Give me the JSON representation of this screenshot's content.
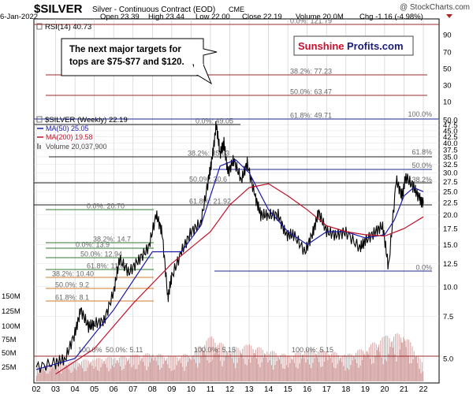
{
  "header": {
    "symbol": "$SILVER",
    "description": "Silver - Continuous Contract (EOD)",
    "exchange": "CME",
    "watermark": "@ StockCharts.com",
    "date": "6-Jan-2022",
    "open": "Open 23.39",
    "high": "High 23.44",
    "low": "Low 22.00",
    "close": "Close 22.19",
    "volume": "Volume 20.0M",
    "chg": "Chg -1.16 (-4.98%)"
  },
  "rsi": {
    "label": "RSI(14) 40.73",
    "ticks": [
      "90",
      "70",
      "50",
      "30",
      "10"
    ]
  },
  "annotation": {
    "line1": "The next major targets for",
    "line2": "tops are $75-$77 and $120."
  },
  "logo": {
    "part1": "Sunshine",
    "part2": "Profits.com"
  },
  "legend": {
    "price": "$SILVER (Weekly) 22.19",
    "ma50": "MA(50) 25.05",
    "ma200": "MA(200) 19.58",
    "volume": "Volume 20,037,900"
  },
  "colors": {
    "price": "#000000",
    "ma50": "#1a1aa8",
    "ma200": "#c0142a",
    "volume": "#d4a4a4",
    "fib_upper": "#9a2b2b",
    "fib_blue": "#1f2a9a",
    "fib_green": "#2f7a2f",
    "fib_orange": "#d07a2a",
    "grid": "#c8c8c8"
  },
  "chart_data": {
    "type": "line",
    "title": "$SILVER Silver - Continuous Contract (EOD)",
    "x_ticks": [
      "02",
      "03",
      "04",
      "05",
      "06",
      "07",
      "08",
      "09",
      "10",
      "11",
      "12",
      "13",
      "14",
      "15",
      "16",
      "17",
      "18",
      "19",
      "20",
      "21",
      "22"
    ],
    "y_ticks": [
      "50.0",
      "47.5",
      "45.0",
      "42.5",
      "40.0",
      "37.5",
      "35.0",
      "32.5",
      "30.0",
      "27.5",
      "25.0",
      "22.5",
      "20.0",
      "17.5",
      "15.0",
      "12.5",
      "10.0",
      "7.5",
      "5.0"
    ],
    "volume_ticks": [
      "150M",
      "125M",
      "100M",
      "75M",
      "50M",
      "25M"
    ],
    "ylim": [
      4.0,
      50.0
    ],
    "log_scale": true,
    "series": [
      {
        "name": "$SILVER (Weekly)",
        "x": [
          2002.0,
          2003.0,
          2003.5,
          2004.0,
          2004.3,
          2004.7,
          2005.0,
          2005.5,
          2006.0,
          2006.3,
          2006.8,
          2007.3,
          2007.8,
          2008.2,
          2008.5,
          2008.8,
          2009.0,
          2009.5,
          2010.0,
          2010.5,
          2010.9,
          2011.1,
          2011.3,
          2011.5,
          2011.7,
          2011.9,
          2012.2,
          2012.6,
          2012.9,
          2013.3,
          2013.6,
          2014.0,
          2014.5,
          2014.9,
          2015.3,
          2015.9,
          2016.3,
          2016.6,
          2017.0,
          2017.5,
          2018.0,
          2018.7,
          2019.0,
          2019.5,
          2019.9,
          2020.2,
          2020.6,
          2020.9,
          2021.1,
          2021.5,
          2021.8,
          2022.0
        ],
        "values": [
          4.6,
          4.8,
          5.0,
          6.4,
          8.0,
          6.8,
          7.0,
          7.2,
          9.5,
          13.0,
          11.5,
          13.0,
          14.5,
          20.0,
          17.0,
          9.0,
          11.0,
          14.0,
          17.0,
          18.5,
          28.0,
          35.0,
          48.0,
          36.0,
          40.0,
          30.0,
          34.0,
          28.0,
          33.0,
          24.0,
          20.0,
          20.0,
          20.0,
          16.5,
          16.5,
          14.0,
          17.0,
          20.5,
          17.0,
          16.5,
          17.0,
          14.5,
          15.5,
          17.0,
          18.0,
          12.0,
          28.0,
          24.0,
          29.0,
          26.0,
          23.5,
          22.2
        ]
      },
      {
        "name": "MA(50)",
        "x": [
          2002.0,
          2004.0,
          2006.0,
          2008.0,
          2009.5,
          2010.5,
          2011.5,
          2012.3,
          2013.0,
          2014.0,
          2015.0,
          2016.0,
          2017.0,
          2018.0,
          2019.0,
          2020.0,
          2020.5,
          2021.0,
          2021.5,
          2022.0
        ],
        "values": [
          4.5,
          5.0,
          8.0,
          14.0,
          14.0,
          18.0,
          32.0,
          34.0,
          30.0,
          21.0,
          17.0,
          15.0,
          17.0,
          17.0,
          16.0,
          16.5,
          19.0,
          24.0,
          26.0,
          25.0
        ]
      },
      {
        "name": "MA(200)",
        "x": [
          2003.0,
          2005.0,
          2007.0,
          2009.0,
          2011.0,
          2012.0,
          2013.0,
          2014.0,
          2015.0,
          2016.0,
          2017.0,
          2018.0,
          2019.0,
          2020.0,
          2021.0,
          2022.0
        ],
        "values": [
          4.3,
          5.5,
          8.5,
          12.5,
          17.0,
          22.0,
          26.0,
          27.0,
          24.0,
          21.0,
          18.0,
          17.0,
          16.5,
          16.3,
          17.5,
          19.6
        ]
      }
    ],
    "volume": {
      "x": [
        2002.0,
        2003.0,
        2004.0,
        2005.0,
        2006.0,
        2007.0,
        2008.0,
        2009.0,
        2010.0,
        2011.0,
        2012.0,
        2013.0,
        2014.0,
        2015.0,
        2016.0,
        2017.0,
        2018.0,
        2019.0,
        2020.0,
        2021.0,
        2022.0
      ],
      "values": [
        18,
        22,
        25,
        28,
        30,
        32,
        35,
        30,
        35,
        55,
        40,
        45,
        38,
        32,
        40,
        38,
        32,
        42,
        55,
        60,
        20
      ]
    },
    "fib_labels": {
      "rsi_top": "0.0%: 121.79",
      "r382_upper": "38.2%: 77.23",
      "r500_upper": "50.0%: 63.47",
      "r618_upper": "61.8%: 49.71",
      "r100_upper": "100.0%",
      "peak0": "0.0%: 49.05",
      "peak382": "38.2%: 35.63",
      "peak500": "50.0%: 30.6",
      "peak618": "61.8%: 21.92",
      "r618_right": "61.8%",
      "r500_right": "50.0%",
      "r382_right": "38.2%",
      "r0_right": "0.0%",
      "g0": "0.0%: 20.70",
      "g382": "38.2%: 14.7",
      "b0": "0.0%: 13.9",
      "b500": "50.0%: 12.94",
      "b618": "61.8%: 11.07",
      "o382": "38.2%: 10.40",
      "o500": "50.0%: 9.2",
      "o618": "61.8%: 8.1",
      "bottom100a": "100.0%",
      "bottom500": "50.0%: 5.11",
      "bottom100b": "100.0%: 5.15",
      "bottom100c": "100.0%: 5.15"
    }
  }
}
